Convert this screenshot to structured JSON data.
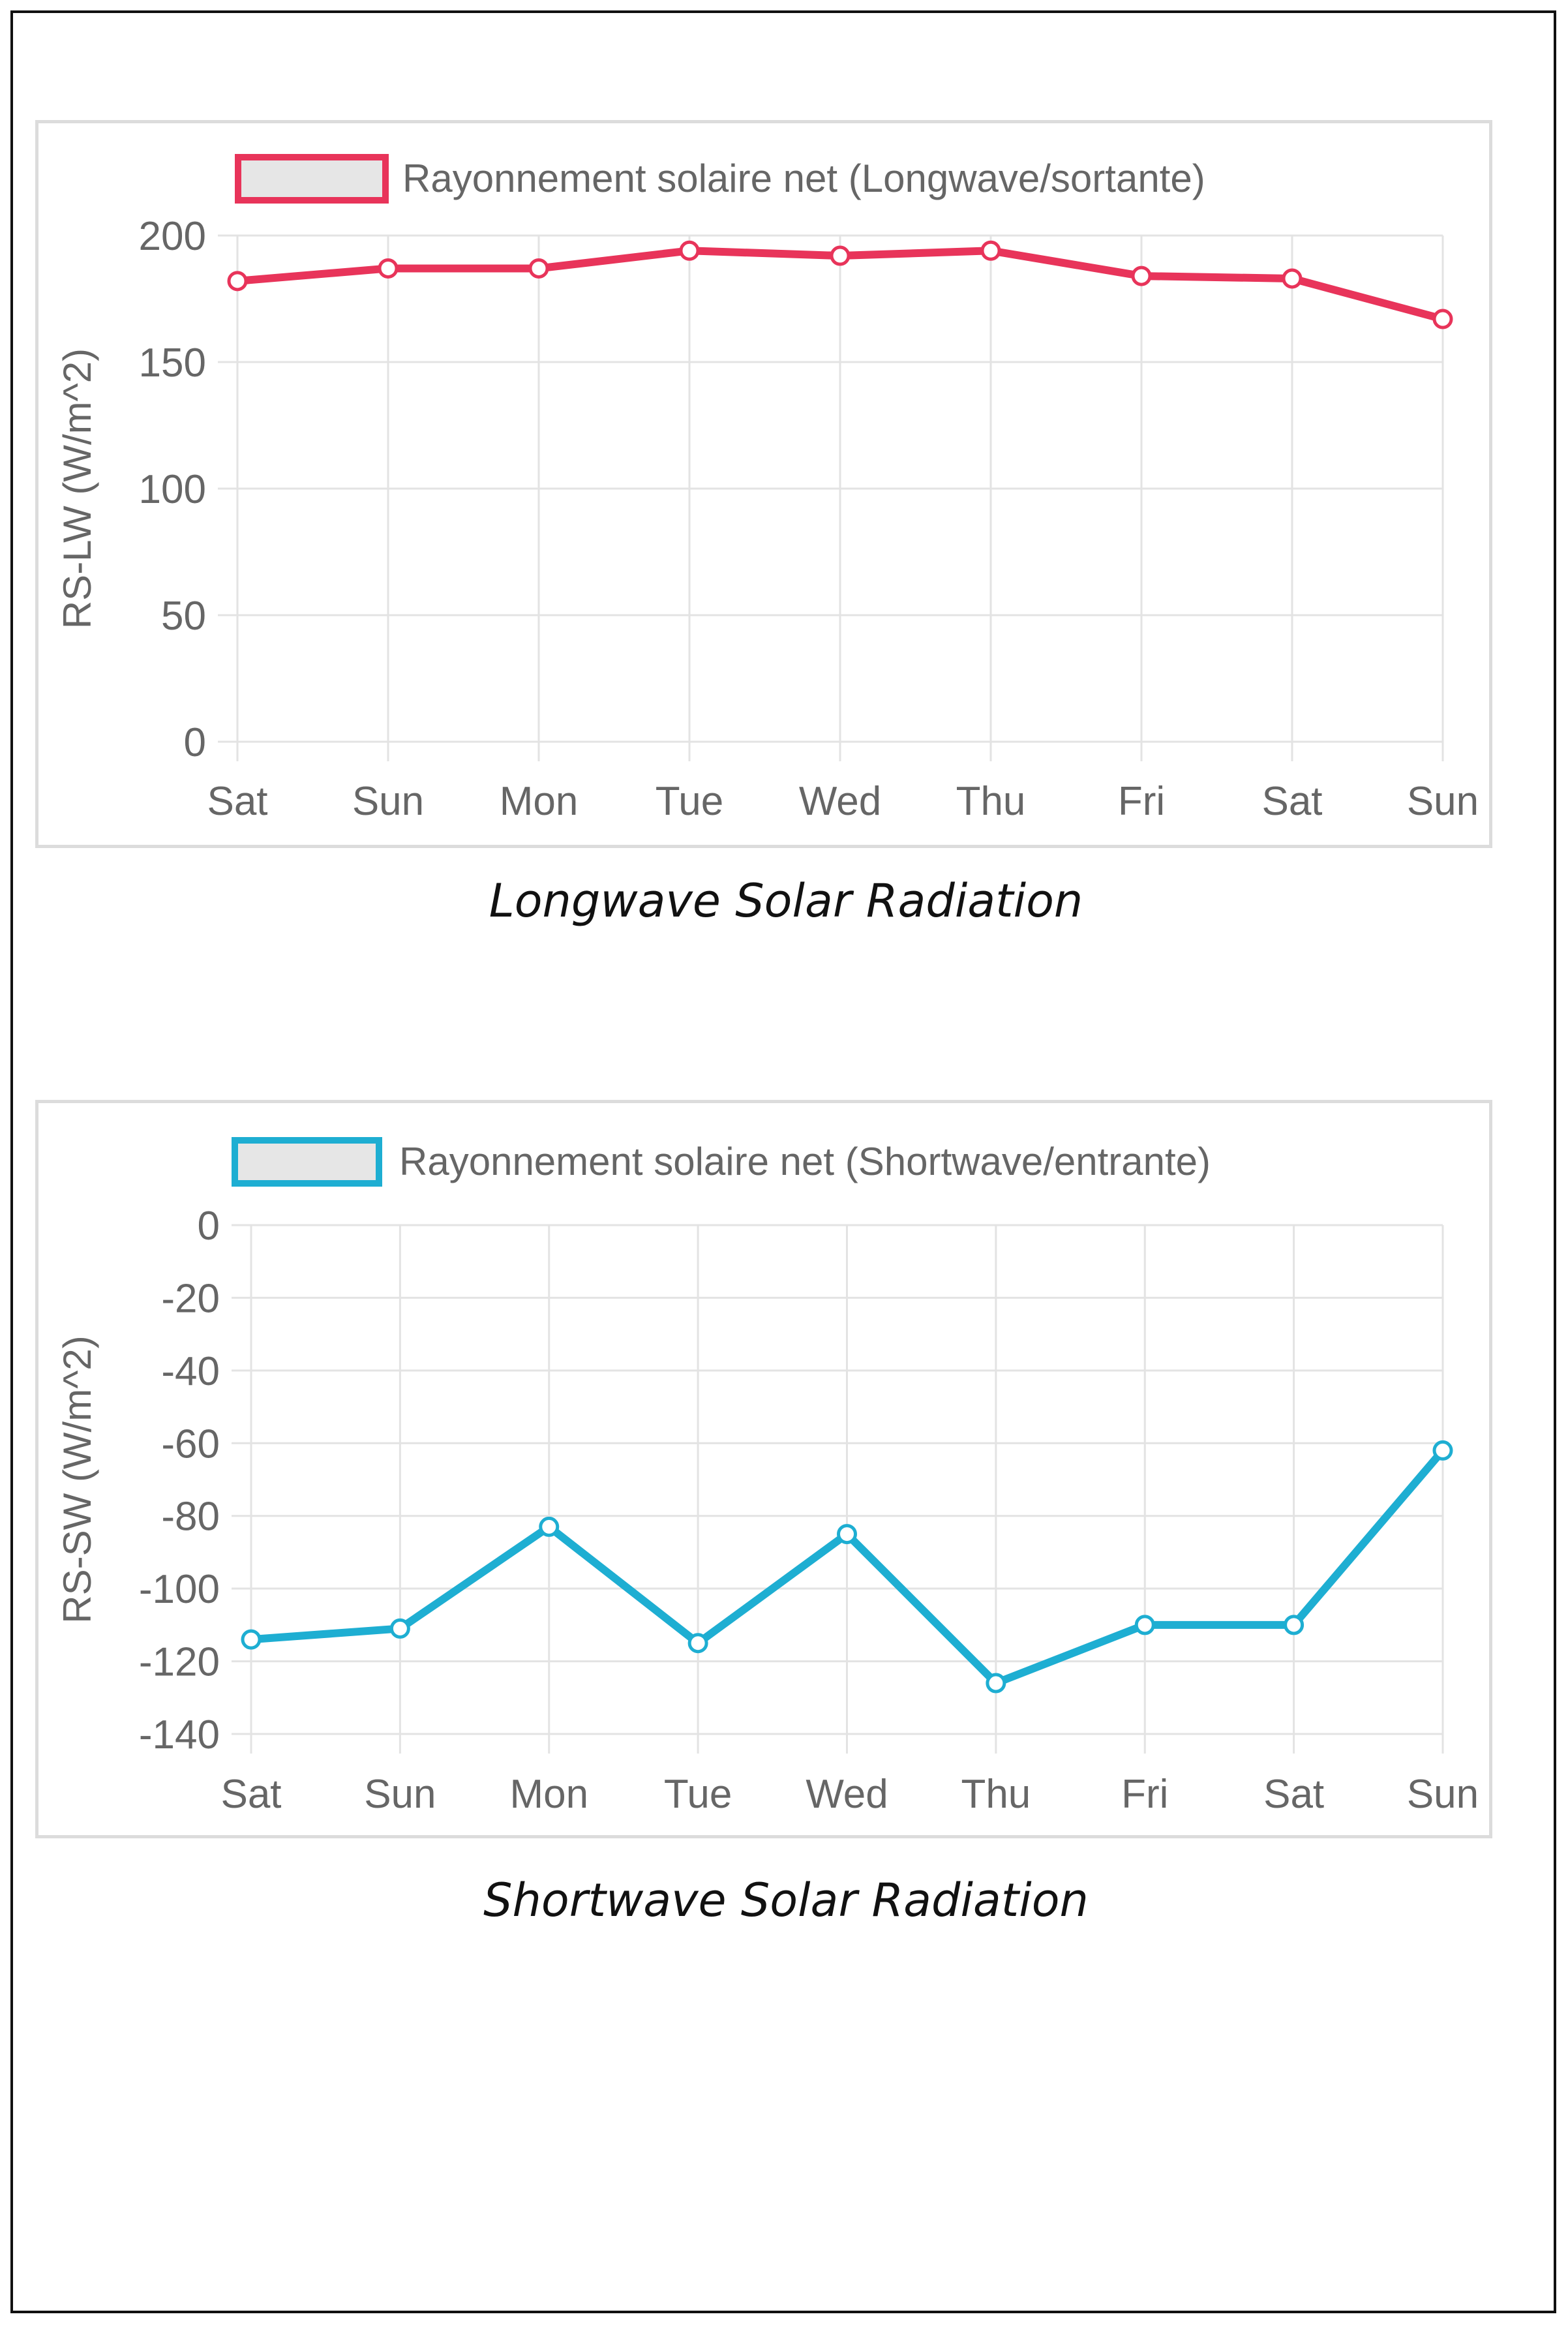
{
  "colors": {
    "longwave": "#e8345a",
    "shortwave": "#1eaed2",
    "legend_fill": "#e6e6e6",
    "grid": "#e3e3e3",
    "tick_text": "#666666"
  },
  "captions": {
    "longwave": "Longwave Solar Radiation",
    "shortwave": "Shortwave Solar Radiation"
  },
  "chart_data": [
    {
      "type": "line",
      "title": "",
      "legend": "Rayonnement solaire net (Longwave/sortante)",
      "legend_position": "top",
      "xlabel": "",
      "ylabel": "RS-LW (W/m^2)",
      "categories": [
        "Sat",
        "Sun",
        "Mon",
        "Tue",
        "Wed",
        "Thu",
        "Fri",
        "Sat",
        "Sun"
      ],
      "values": [
        182,
        187,
        187,
        194,
        192,
        194,
        184,
        183,
        167
      ],
      "ylim": [
        0,
        200
      ],
      "yticks": [
        0,
        50,
        100,
        150,
        200
      ],
      "ytick_labels": [
        "0",
        "50",
        "100",
        "150",
        "200"
      ],
      "grid": true,
      "color": "#e8345a"
    },
    {
      "type": "line",
      "title": "",
      "legend": "Rayonnement solaire net (Shortwave/entrante)",
      "legend_position": "top",
      "xlabel": "",
      "ylabel": "RS-SW (W/m^2)",
      "categories": [
        "Sat",
        "Sun",
        "Mon",
        "Tue",
        "Wed",
        "Thu",
        "Fri",
        "Sat",
        "Sun"
      ],
      "values": [
        -114,
        -111,
        -83,
        -115,
        -85,
        -126,
        -110,
        -110,
        -62
      ],
      "ylim": [
        -140,
        0
      ],
      "yticks": [
        0,
        -20,
        -40,
        -60,
        -80,
        -100,
        -120,
        -140
      ],
      "ytick_labels": [
        "0",
        "-20",
        "-40",
        "-60",
        "-80",
        "-100",
        "-120",
        "-140"
      ],
      "grid": true,
      "color": "#1eaed2"
    }
  ]
}
